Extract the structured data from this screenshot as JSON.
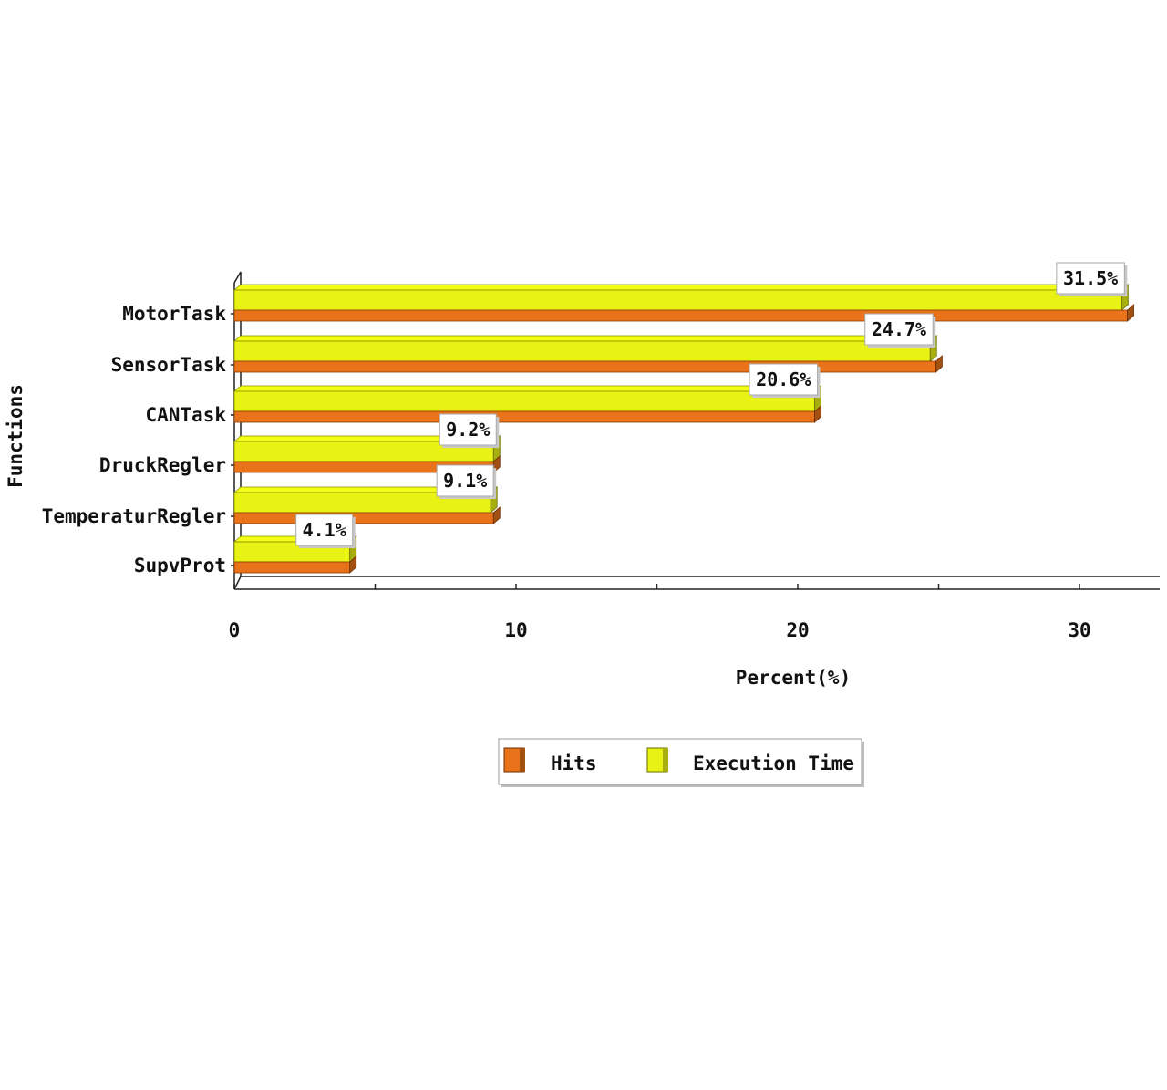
{
  "chart_data": {
    "type": "bar",
    "orientation": "horizontal",
    "style": "3d",
    "title": "",
    "xlabel": "Percent(%)",
    "ylabel": "Functions",
    "categories": [
      "MotorTask",
      "SensorTask",
      "CANTask",
      "DruckRegler",
      "TemperaturRegler",
      "SupvProt"
    ],
    "xlim": [
      0,
      33
    ],
    "ticks": [
      0,
      10,
      20,
      30
    ],
    "grid": false,
    "legend_position": "bottom",
    "series": [
      {
        "name": "Hits",
        "values": [
          31.7,
          24.9,
          20.6,
          9.2,
          9.2,
          4.1
        ],
        "color": "#e8731a"
      },
      {
        "name": "Execution Time",
        "values": [
          31.5,
          24.7,
          20.6,
          9.2,
          9.1,
          4.1
        ],
        "color": "#e8f214"
      }
    ],
    "data_labels": [
      "31.5%",
      "24.7%",
      "20.6%",
      "9.2%",
      "9.1%",
      "4.1%"
    ]
  }
}
